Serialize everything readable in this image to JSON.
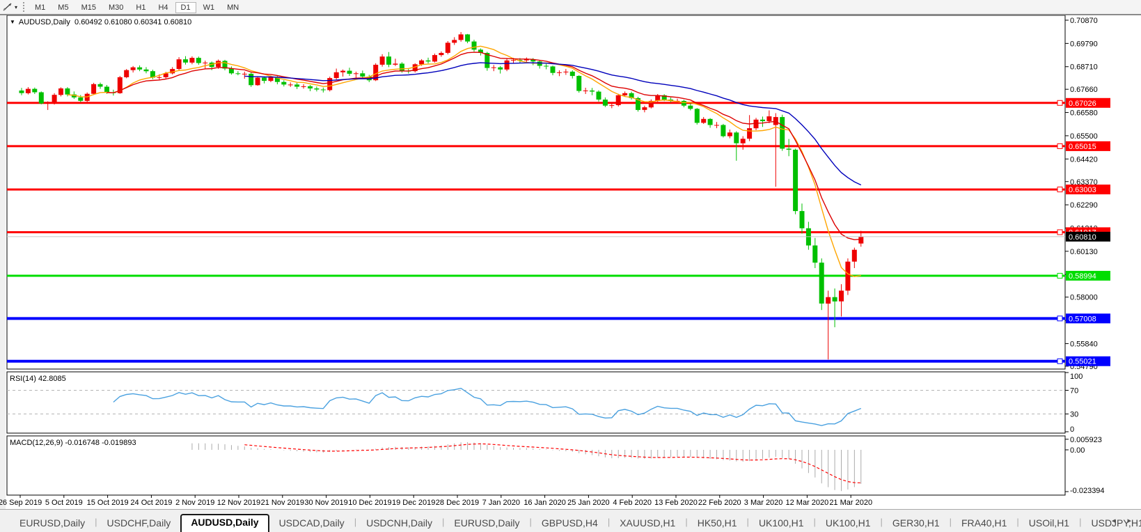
{
  "toolbar": {
    "tool_icon": "line-studies-icon",
    "dropdown_icon": "▾",
    "periods": [
      "M1",
      "M5",
      "M15",
      "M30",
      "H1",
      "H4",
      "D1",
      "W1",
      "MN"
    ],
    "active_period": "D1"
  },
  "chart": {
    "title_symbol": "AUDUSD,Daily",
    "title_ohlc": "0.60492 0.61080 0.60341 0.60810",
    "title_arrow": "▼"
  },
  "chart_data": {
    "type": "candlestick",
    "symbol": "AUDUSD",
    "timeframe": "Daily",
    "last_ohlc": {
      "open": 0.60492,
      "high": 0.6108,
      "low": 0.60341,
      "close": 0.6081
    },
    "ylim": [
      0.5479,
      0.7087
    ],
    "y_ticks": [
      0.7087,
      0.6979,
      0.6871,
      0.6766,
      0.6658,
      0.655,
      0.6442,
      0.6337,
      0.6229,
      0.6121,
      0.6013,
      0.5905,
      0.58,
      0.5692,
      0.5584,
      0.5479
    ],
    "x_labels": [
      "26 Sep 2019",
      "5 Oct 2019",
      "15 Oct 2019",
      "24 Oct 2019",
      "2 Nov 2019",
      "12 Nov 2019",
      "21 Nov 2019",
      "30 Nov 2019",
      "10 Dec 2019",
      "19 Dec 2019",
      "28 Dec 2019",
      "7 Jan 2020",
      "16 Jan 2020",
      "25 Jan 2020",
      "4 Feb 2020",
      "13 Feb 2020",
      "22 Feb 2020",
      "3 Mar 2020",
      "12 Mar 2020",
      "21 Mar 2020"
    ],
    "hlines": [
      {
        "price": 0.67026,
        "color": "#FF0000",
        "width": 3,
        "label": "0.67026"
      },
      {
        "price": 0.65015,
        "color": "#FF0000",
        "width": 3,
        "label": "0.65015"
      },
      {
        "price": 0.63003,
        "color": "#FF0000",
        "width": 3,
        "label": "0.63003"
      },
      {
        "price": 0.61017,
        "color": "#FF0000",
        "width": 3,
        "label": "0.61017"
      },
      {
        "price": 0.58994,
        "color": "#00DD00",
        "width": 3,
        "label": "0.58994"
      },
      {
        "price": 0.57008,
        "color": "#0000FF",
        "width": 4,
        "label": "0.57008"
      },
      {
        "price": 0.55021,
        "color": "#0000FF",
        "width": 4,
        "label": "0.55021"
      }
    ],
    "current_price": {
      "value": 0.6081,
      "label": "0.60810",
      "line_color": "#c8c8c8",
      "badge_bg": "#000000"
    },
    "moving_averages": [
      {
        "name": "ma-fast",
        "type": "sma",
        "period": 8,
        "color": "#FFA500"
      },
      {
        "name": "ma-mid",
        "type": "ema",
        "period": 13,
        "color": "#DD0000"
      },
      {
        "name": "ma-slow",
        "type": "ema",
        "period": 34,
        "color": "#0000BB"
      }
    ],
    "colors": {
      "bull": "#EE0000",
      "bear": "#00C000",
      "background": "#FFFFFF",
      "axis_text": "#000000",
      "grid_dash": "#b4b4b4"
    },
    "indicators": [
      {
        "name": "RSI",
        "label": "RSI(14) 42.8085",
        "period": 14,
        "value": 42.8085,
        "y_ticks": [
          100,
          70,
          30,
          0
        ],
        "dashed_levels": [
          70,
          30
        ],
        "color": "#4AA1E0"
      },
      {
        "name": "MACD",
        "label": "MACD(12,26,9) -0.016748 -0.019893",
        "main": -0.016748,
        "signal": -0.019893,
        "y_tick_labels": [
          "0.005923",
          "0.00",
          "-0.023394"
        ],
        "y_tick_values": [
          0.005923,
          0.0,
          -0.023394
        ],
        "hist_color": "#ABABAB",
        "signal_color": "#FF0000"
      }
    ],
    "candles": [
      [
        0.676,
        0.6772,
        0.6738,
        0.6748
      ],
      [
        0.6748,
        0.6776,
        0.6742,
        0.6768
      ],
      [
        0.6768,
        0.6774,
        0.6744,
        0.6752
      ],
      [
        0.6752,
        0.6756,
        0.6696,
        0.67
      ],
      [
        0.67,
        0.671,
        0.667,
        0.6706
      ],
      [
        0.6706,
        0.6748,
        0.6695,
        0.674
      ],
      [
        0.674,
        0.6775,
        0.6733,
        0.677
      ],
      [
        0.677,
        0.6776,
        0.6733,
        0.6742
      ],
      [
        0.6742,
        0.6756,
        0.6721,
        0.6728
      ],
      [
        0.6728,
        0.6739,
        0.6706,
        0.6712
      ],
      [
        0.6712,
        0.6751,
        0.6705,
        0.6745
      ],
      [
        0.6745,
        0.6796,
        0.6739,
        0.679
      ],
      [
        0.679,
        0.6797,
        0.6768,
        0.6778
      ],
      [
        0.6778,
        0.6786,
        0.6745,
        0.6752
      ],
      [
        0.6752,
        0.6764,
        0.6737,
        0.6748
      ],
      [
        0.6748,
        0.6828,
        0.6745,
        0.6822
      ],
      [
        0.6822,
        0.686,
        0.6817,
        0.6855
      ],
      [
        0.6855,
        0.6874,
        0.6844,
        0.6868
      ],
      [
        0.6868,
        0.6877,
        0.685,
        0.6858
      ],
      [
        0.6858,
        0.6869,
        0.684,
        0.685
      ],
      [
        0.685,
        0.6857,
        0.6813,
        0.682
      ],
      [
        0.682,
        0.6836,
        0.681,
        0.6822
      ],
      [
        0.6822,
        0.6847,
        0.6816,
        0.684
      ],
      [
        0.684,
        0.6869,
        0.6835,
        0.686
      ],
      [
        0.686,
        0.6915,
        0.6855,
        0.6905
      ],
      [
        0.6905,
        0.692,
        0.6881,
        0.689
      ],
      [
        0.689,
        0.6919,
        0.6882,
        0.6912
      ],
      [
        0.6912,
        0.6918,
        0.688,
        0.6888
      ],
      [
        0.6888,
        0.6899,
        0.6862,
        0.689
      ],
      [
        0.689,
        0.6895,
        0.6855,
        0.687
      ],
      [
        0.687,
        0.6904,
        0.6861,
        0.6898
      ],
      [
        0.6898,
        0.6903,
        0.6854,
        0.6862
      ],
      [
        0.6862,
        0.6872,
        0.6834,
        0.684
      ],
      [
        0.684,
        0.685,
        0.6831,
        0.6838
      ],
      [
        0.6838,
        0.6848,
        0.6815,
        0.6838
      ],
      [
        0.6838,
        0.6844,
        0.6777,
        0.6785
      ],
      [
        0.6785,
        0.6826,
        0.6782,
        0.682
      ],
      [
        0.682,
        0.6826,
        0.6793,
        0.6805
      ],
      [
        0.6805,
        0.683,
        0.6799,
        0.6822
      ],
      [
        0.6822,
        0.6827,
        0.6789,
        0.68
      ],
      [
        0.68,
        0.6808,
        0.6779,
        0.6788
      ],
      [
        0.6788,
        0.6798,
        0.6777,
        0.6788
      ],
      [
        0.6788,
        0.6796,
        0.6767,
        0.6778
      ],
      [
        0.6778,
        0.679,
        0.6769,
        0.678
      ],
      [
        0.678,
        0.6786,
        0.6757,
        0.677
      ],
      [
        0.677,
        0.6779,
        0.6756,
        0.6765
      ],
      [
        0.6765,
        0.6774,
        0.6751,
        0.6762
      ],
      [
        0.6762,
        0.6825,
        0.6756,
        0.6818
      ],
      [
        0.6818,
        0.6862,
        0.6811,
        0.6845
      ],
      [
        0.6845,
        0.6858,
        0.6825,
        0.6852
      ],
      [
        0.6852,
        0.6866,
        0.6828,
        0.6838
      ],
      [
        0.6838,
        0.6848,
        0.682,
        0.684
      ],
      [
        0.684,
        0.6853,
        0.6817,
        0.6825
      ],
      [
        0.6825,
        0.6833,
        0.6799,
        0.6808
      ],
      [
        0.6808,
        0.6887,
        0.6804,
        0.688
      ],
      [
        0.688,
        0.6929,
        0.6871,
        0.6918
      ],
      [
        0.6918,
        0.6939,
        0.6869,
        0.688
      ],
      [
        0.688,
        0.6908,
        0.6874,
        0.6885
      ],
      [
        0.6885,
        0.6892,
        0.6843,
        0.6852
      ],
      [
        0.6852,
        0.6864,
        0.6839,
        0.685
      ],
      [
        0.685,
        0.6887,
        0.6844,
        0.6882
      ],
      [
        0.6882,
        0.6906,
        0.6875,
        0.69
      ],
      [
        0.69,
        0.6913,
        0.6886,
        0.6895
      ],
      [
        0.6895,
        0.6932,
        0.689,
        0.6925
      ],
      [
        0.6925,
        0.6942,
        0.6917,
        0.6935
      ],
      [
        0.6935,
        0.699,
        0.6928,
        0.6982
      ],
      [
        0.6982,
        0.7008,
        0.6972,
        0.6995
      ],
      [
        0.6995,
        0.7032,
        0.6987,
        0.7021
      ],
      [
        0.7021,
        0.7023,
        0.698,
        0.6988
      ],
      [
        0.6988,
        0.6996,
        0.6941,
        0.695
      ],
      [
        0.695,
        0.6956,
        0.6923,
        0.6935
      ],
      [
        0.6935,
        0.694,
        0.6852,
        0.6865
      ],
      [
        0.6865,
        0.6879,
        0.685,
        0.6868
      ],
      [
        0.6868,
        0.6874,
        0.6839,
        0.6858
      ],
      [
        0.6858,
        0.6911,
        0.685,
        0.69
      ],
      [
        0.69,
        0.6912,
        0.6888,
        0.6902
      ],
      [
        0.6902,
        0.6911,
        0.6889,
        0.69
      ],
      [
        0.69,
        0.6914,
        0.6887,
        0.6905
      ],
      [
        0.6905,
        0.6911,
        0.6878,
        0.6895
      ],
      [
        0.6895,
        0.6901,
        0.6862,
        0.6875
      ],
      [
        0.6875,
        0.6884,
        0.6859,
        0.6872
      ],
      [
        0.6872,
        0.6876,
        0.6831,
        0.6842
      ],
      [
        0.6842,
        0.6854,
        0.6827,
        0.6845
      ],
      [
        0.6845,
        0.686,
        0.6833,
        0.6848
      ],
      [
        0.6848,
        0.6854,
        0.6816,
        0.6828
      ],
      [
        0.6828,
        0.6831,
        0.675,
        0.6758
      ],
      [
        0.6758,
        0.6773,
        0.6744,
        0.676
      ],
      [
        0.676,
        0.6772,
        0.6738,
        0.6755
      ],
      [
        0.6755,
        0.6761,
        0.6709,
        0.6718
      ],
      [
        0.6718,
        0.6728,
        0.6683,
        0.669
      ],
      [
        0.669,
        0.6702,
        0.6678,
        0.6692
      ],
      [
        0.6692,
        0.6745,
        0.6686,
        0.6738
      ],
      [
        0.6738,
        0.6756,
        0.6733,
        0.6748
      ],
      [
        0.6748,
        0.6755,
        0.6718,
        0.6725
      ],
      [
        0.6725,
        0.6731,
        0.6662,
        0.667
      ],
      [
        0.667,
        0.669,
        0.6659,
        0.6682
      ],
      [
        0.6682,
        0.6719,
        0.6677,
        0.6712
      ],
      [
        0.6712,
        0.6744,
        0.6707,
        0.6738
      ],
      [
        0.6738,
        0.6743,
        0.6711,
        0.6718
      ],
      [
        0.6718,
        0.6728,
        0.6705,
        0.6712
      ],
      [
        0.6712,
        0.6722,
        0.6701,
        0.6712
      ],
      [
        0.6712,
        0.6717,
        0.6682,
        0.669
      ],
      [
        0.669,
        0.67,
        0.6668,
        0.6675
      ],
      [
        0.6675,
        0.6679,
        0.6602,
        0.661
      ],
      [
        0.661,
        0.6637,
        0.6605,
        0.6628
      ],
      [
        0.6628,
        0.6632,
        0.6587,
        0.66
      ],
      [
        0.66,
        0.6614,
        0.6585,
        0.66
      ],
      [
        0.66,
        0.6605,
        0.6542,
        0.6548
      ],
      [
        0.6548,
        0.6579,
        0.6538,
        0.6565
      ],
      [
        0.6565,
        0.6571,
        0.6434,
        0.6515
      ],
      [
        0.6515,
        0.6548,
        0.6485,
        0.6536
      ],
      [
        0.6536,
        0.6646,
        0.6525,
        0.6585
      ],
      [
        0.6585,
        0.6633,
        0.6576,
        0.6625
      ],
      [
        0.6625,
        0.6639,
        0.6591,
        0.6618
      ],
      [
        0.6618,
        0.6668,
        0.6608,
        0.664
      ],
      [
        0.66,
        0.6655,
        0.6313,
        0.6637
      ],
      [
        0.6637,
        0.6648,
        0.648,
        0.649
      ],
      [
        0.649,
        0.6535,
        0.6455,
        0.6485
      ],
      [
        0.6485,
        0.649,
        0.6185,
        0.62
      ],
      [
        0.62,
        0.6235,
        0.6095,
        0.612
      ],
      [
        0.612,
        0.615,
        0.602,
        0.604
      ],
      [
        0.604,
        0.6075,
        0.5935,
        0.596
      ],
      [
        0.596,
        0.598,
        0.574,
        0.577
      ],
      [
        0.577,
        0.583,
        0.551,
        0.58
      ],
      [
        0.58,
        0.584,
        0.566,
        0.578
      ],
      [
        0.578,
        0.586,
        0.571,
        0.583
      ],
      [
        0.583,
        0.598,
        0.581,
        0.5965
      ],
      [
        0.5965,
        0.603,
        0.5935,
        0.602
      ],
      [
        0.60492,
        0.6108,
        0.60341,
        0.6081
      ]
    ]
  },
  "tabs": {
    "active_index": 2,
    "items": [
      {
        "label": "EURUSD,Daily"
      },
      {
        "label": "USDCHF,Daily"
      },
      {
        "label": "AUDUSD,Daily"
      },
      {
        "label": "USDCAD,Daily"
      },
      {
        "label": "USDCNH,Daily"
      },
      {
        "label": "EURUSD,Daily"
      },
      {
        "label": "GBPUSD,H4"
      },
      {
        "label": "XAUUSD,H1"
      },
      {
        "label": "HK50,H1"
      },
      {
        "label": "UK100,H1"
      },
      {
        "label": "UK100,H1"
      },
      {
        "label": "GER30,H1"
      },
      {
        "label": "FRA40,H1"
      },
      {
        "label": "USOil,H1"
      },
      {
        "label": "USDJPY,H1"
      }
    ],
    "scroll_left": "◂",
    "scroll_right": "▸"
  }
}
